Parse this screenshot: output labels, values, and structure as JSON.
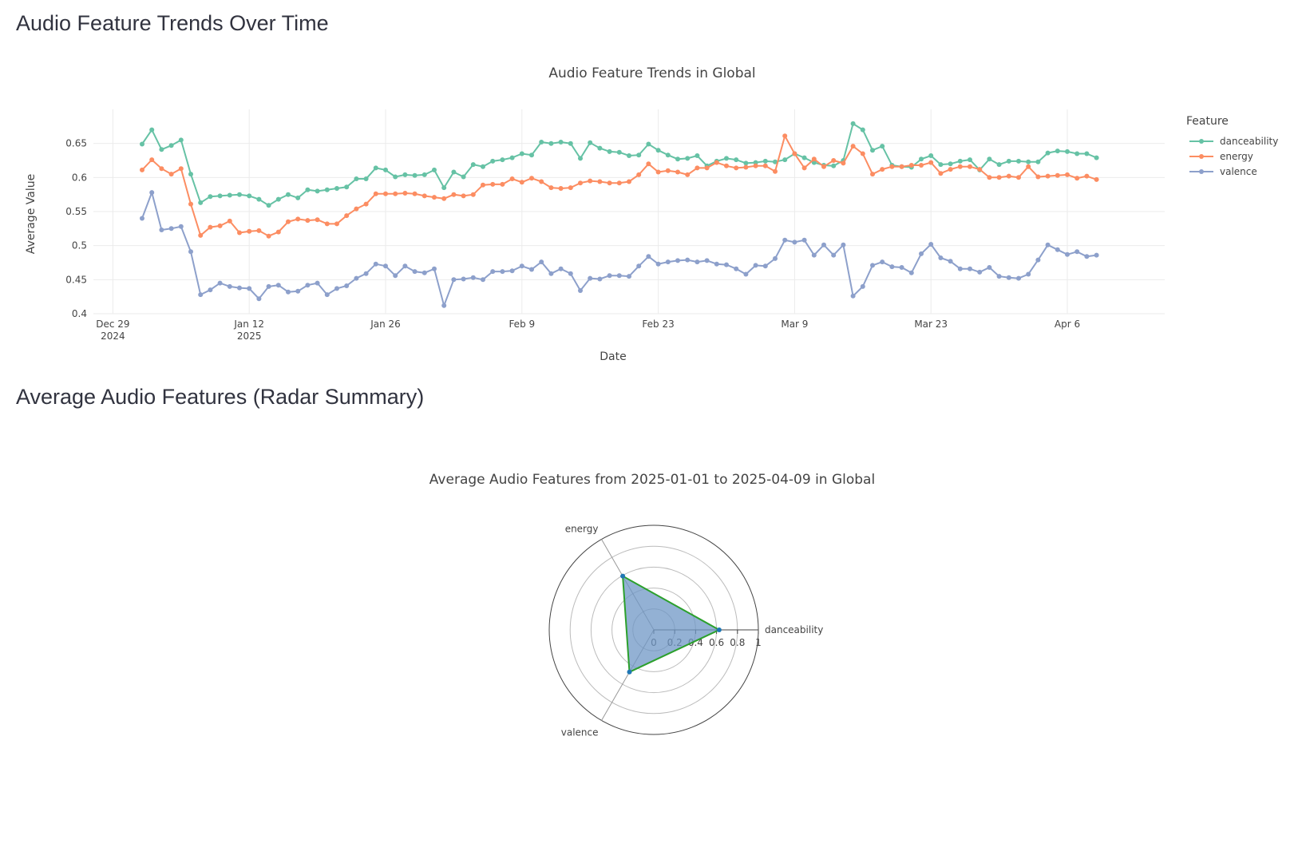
{
  "page": {
    "heading_trends": "Audio Feature Trends Over Time",
    "heading_radar": "Average Audio Features (Radar Summary)"
  },
  "chart_data": [
    {
      "type": "line",
      "title": "Audio Feature Trends in Global",
      "xlabel": "Date",
      "ylabel": "Average Value",
      "x_start": "2025-01-01",
      "x_end": "2025-04-09",
      "xlim": [
        "2024-12-27",
        "2025-04-16"
      ],
      "ylim": [
        0.4,
        0.7
      ],
      "x_ticks": [
        {
          "date": "2024-12-29",
          "label": "Dec 29",
          "sublabel": "2024"
        },
        {
          "date": "2025-01-12",
          "label": "Jan 12",
          "sublabel": "2025"
        },
        {
          "date": "2025-01-26",
          "label": "Jan 26",
          "sublabel": ""
        },
        {
          "date": "2025-02-09",
          "label": "Feb 9",
          "sublabel": ""
        },
        {
          "date": "2025-02-23",
          "label": "Feb 23",
          "sublabel": ""
        },
        {
          "date": "2025-03-09",
          "label": "Mar 9",
          "sublabel": ""
        },
        {
          "date": "2025-03-23",
          "label": "Mar 23",
          "sublabel": ""
        },
        {
          "date": "2025-04-06",
          "label": "Apr 6",
          "sublabel": ""
        }
      ],
      "y_ticks": [
        {
          "value": 0.4,
          "label": "0.4"
        },
        {
          "value": 0.45,
          "label": "0.45"
        },
        {
          "value": 0.5,
          "label": "0.5"
        },
        {
          "value": 0.55,
          "label": "0.55"
        },
        {
          "value": 0.6,
          "label": "0.6"
        },
        {
          "value": 0.65,
          "label": "0.65"
        }
      ],
      "grid": true,
      "legend": {
        "title": "Feature",
        "placement": "right"
      },
      "series": [
        {
          "name": "danceability",
          "color": "#66c2a5",
          "values": [
            0.649,
            0.67,
            0.641,
            0.647,
            0.655,
            0.605,
            0.563,
            0.572,
            0.573,
            0.574,
            0.575,
            0.573,
            0.568,
            0.559,
            0.568,
            0.575,
            0.57,
            0.582,
            0.58,
            0.582,
            0.584,
            0.586,
            0.598,
            0.598,
            0.614,
            0.611,
            0.601,
            0.604,
            0.603,
            0.604,
            0.611,
            0.585,
            0.608,
            0.601,
            0.619,
            0.616,
            0.624,
            0.626,
            0.629,
            0.635,
            0.633,
            0.652,
            0.65,
            0.652,
            0.65,
            0.628,
            0.651,
            0.643,
            0.638,
            0.637,
            0.632,
            0.633,
            0.649,
            0.64,
            0.633,
            0.627,
            0.628,
            0.632,
            0.617,
            0.624,
            0.628,
            0.626,
            0.621,
            0.622,
            0.624,
            0.623,
            0.626,
            0.635,
            0.629,
            0.622,
            0.618,
            0.617,
            0.625,
            0.679,
            0.67,
            0.64,
            0.646,
            0.618,
            0.616,
            0.615,
            0.627,
            0.632,
            0.619,
            0.62,
            0.624,
            0.626,
            0.611,
            0.627,
            0.619,
            0.624,
            0.624,
            0.623,
            0.623,
            0.636,
            0.639,
            0.638,
            0.635,
            0.635,
            0.629
          ]
        },
        {
          "name": "energy",
          "color": "#fc8d62",
          "values": [
            0.611,
            0.626,
            0.613,
            0.605,
            0.613,
            0.561,
            0.515,
            0.527,
            0.529,
            0.536,
            0.519,
            0.521,
            0.522,
            0.514,
            0.52,
            0.535,
            0.539,
            0.537,
            0.538,
            0.532,
            0.532,
            0.544,
            0.554,
            0.561,
            0.576,
            0.576,
            0.576,
            0.577,
            0.576,
            0.573,
            0.571,
            0.569,
            0.575,
            0.573,
            0.575,
            0.589,
            0.59,
            0.59,
            0.598,
            0.593,
            0.599,
            0.594,
            0.585,
            0.584,
            0.585,
            0.592,
            0.595,
            0.594,
            0.592,
            0.592,
            0.594,
            0.604,
            0.62,
            0.608,
            0.61,
            0.608,
            0.604,
            0.614,
            0.614,
            0.622,
            0.617,
            0.614,
            0.615,
            0.617,
            0.617,
            0.609,
            0.661,
            0.635,
            0.614,
            0.627,
            0.616,
            0.625,
            0.621,
            0.646,
            0.635,
            0.605,
            0.612,
            0.616,
            0.616,
            0.618,
            0.618,
            0.622,
            0.606,
            0.612,
            0.616,
            0.616,
            0.612,
            0.6,
            0.6,
            0.602,
            0.6,
            0.616,
            0.601,
            0.602,
            0.603,
            0.604,
            0.599,
            0.602,
            0.597
          ]
        },
        {
          "name": "valence",
          "color": "#8da0cb",
          "values": [
            0.54,
            0.578,
            0.523,
            0.525,
            0.528,
            0.491,
            0.428,
            0.435,
            0.445,
            0.44,
            0.438,
            0.437,
            0.422,
            0.44,
            0.442,
            0.432,
            0.433,
            0.442,
            0.445,
            0.428,
            0.437,
            0.441,
            0.452,
            0.459,
            0.473,
            0.47,
            0.456,
            0.47,
            0.462,
            0.46,
            0.466,
            0.412,
            0.45,
            0.451,
            0.453,
            0.45,
            0.462,
            0.462,
            0.463,
            0.47,
            0.465,
            0.476,
            0.459,
            0.466,
            0.459,
            0.434,
            0.452,
            0.451,
            0.456,
            0.456,
            0.455,
            0.47,
            0.484,
            0.473,
            0.476,
            0.478,
            0.479,
            0.476,
            0.478,
            0.473,
            0.472,
            0.466,
            0.458,
            0.471,
            0.47,
            0.481,
            0.508,
            0.505,
            0.508,
            0.486,
            0.501,
            0.486,
            0.501,
            0.426,
            0.44,
            0.471,
            0.476,
            0.469,
            0.468,
            0.46,
            0.488,
            0.502,
            0.482,
            0.477,
            0.466,
            0.466,
            0.461,
            0.468,
            0.455,
            0.453,
            0.452,
            0.458,
            0.479,
            0.501,
            0.494,
            0.487,
            0.491,
            0.484,
            0.486
          ]
        }
      ]
    },
    {
      "type": "radar",
      "title": "Average Audio Features from 2025-01-01 to 2025-04-09 in Global",
      "categories": [
        "danceability",
        "energy",
        "valence"
      ],
      "values": [
        0.625,
        0.594,
        0.465
      ],
      "radial_range": [
        0,
        1
      ],
      "radial_ticks": [
        "0",
        "0.2",
        "0.4",
        "0.6",
        "0.8",
        "1"
      ],
      "fill_color": "#6f97c6",
      "line_color": "#2ca02c",
      "marker_color": "#1f77b4"
    }
  ]
}
